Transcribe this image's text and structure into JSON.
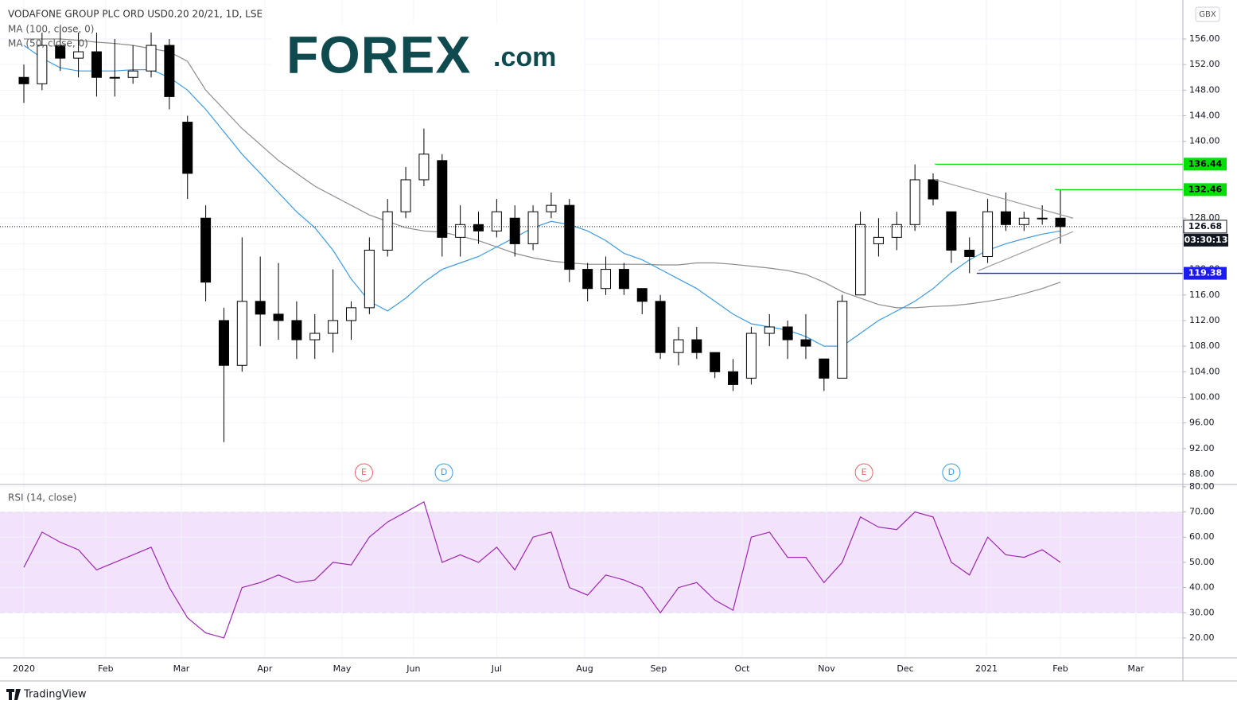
{
  "chart_data": [
    {
      "type": "candlestick",
      "title": "VODAFONE GROUP PLC ORD USD0.20 20/21, 1D, LSE",
      "unit": "GBX",
      "x": [
        0,
        1,
        2,
        3,
        4,
        5,
        6,
        7,
        8,
        9,
        10,
        11,
        12,
        13,
        14,
        15,
        16,
        17,
        18,
        19,
        20,
        21,
        22,
        23,
        24,
        25,
        26,
        27,
        28,
        29,
        30,
        31,
        32,
        33,
        34,
        35,
        36,
        37,
        38,
        39,
        40,
        41,
        42,
        43,
        44,
        45,
        46,
        47,
        48,
        49,
        50,
        51,
        52,
        53,
        54,
        55,
        56,
        57
      ],
      "open": [
        150,
        149,
        155,
        153,
        154,
        150,
        150,
        151,
        155,
        143,
        128,
        112,
        105,
        115,
        113,
        112,
        109,
        110,
        112,
        114,
        123,
        129,
        134,
        137,
        125,
        127,
        126,
        128,
        124,
        129,
        130,
        120,
        117,
        120,
        117,
        115,
        107,
        109,
        107,
        104,
        103,
        110,
        111,
        109,
        106,
        103,
        116,
        124,
        125,
        127,
        134,
        129,
        123,
        122,
        129,
        127,
        128,
        128
      ],
      "high": [
        152,
        157,
        158,
        157,
        157,
        156,
        155,
        157,
        156,
        144,
        130,
        114,
        125,
        122,
        121,
        115,
        113,
        120,
        115,
        125,
        131,
        136,
        142,
        138,
        130,
        129,
        131,
        130,
        130,
        132,
        131,
        121,
        122,
        121,
        117,
        116,
        111,
        111,
        107,
        106,
        111,
        113,
        112,
        113,
        106,
        116,
        129,
        128,
        129,
        136.4,
        135,
        129,
        125,
        131,
        132,
        129,
        130,
        132.5
      ],
      "low": [
        146,
        148,
        151,
        150,
        147,
        147,
        149,
        150,
        145,
        131,
        115,
        93,
        104,
        108,
        109,
        106,
        106,
        107,
        109,
        113,
        122,
        128,
        133,
        122,
        122,
        124,
        125,
        122,
        123,
        128,
        118,
        115,
        116,
        116,
        113,
        106,
        105,
        106,
        103,
        101,
        102,
        108,
        106,
        106,
        101,
        103,
        116,
        122,
        123,
        126,
        130,
        121,
        119.4,
        121,
        126,
        126,
        127,
        124
      ],
      "close": [
        149,
        155,
        153,
        154,
        150,
        150,
        151,
        155,
        147,
        135,
        118,
        105,
        115,
        113,
        112,
        109,
        110,
        112,
        114,
        123,
        129,
        134,
        138,
        125,
        127,
        126,
        129,
        124,
        129,
        130,
        120,
        117,
        120,
        117,
        115,
        107,
        109,
        107,
        104,
        102,
        110,
        111,
        109,
        108,
        103,
        115,
        127,
        125,
        127,
        134,
        131,
        123,
        122,
        129,
        127,
        128,
        128,
        126.68
      ],
      "up_color": "#ffffff",
      "down_color": "#000000",
      "edge_color": "#000000",
      "series": [
        {
          "name": "MA (100, close, 0)",
          "color": "#8c8c8c",
          "values": [
            156,
            156,
            156,
            155.8,
            155.5,
            155.3,
            155,
            154.5,
            154,
            152.5,
            148,
            145,
            142,
            139.5,
            137,
            135,
            133,
            131.5,
            130,
            128.5,
            127.5,
            126.5,
            126,
            125.8,
            125.2,
            124.5,
            123.5,
            122.5,
            121.8,
            121.3,
            121,
            120.8,
            120.8,
            120.8,
            120.8,
            120.7,
            120.7,
            121,
            121,
            120.8,
            120.5,
            120.2,
            119.8,
            119.2,
            118,
            116.5,
            115.5,
            114.5,
            114,
            114,
            114.2,
            114.3,
            114.6,
            115,
            115.5,
            116.2,
            117,
            118
          ]
        },
        {
          "name": "MA (50, close, 0)",
          "color": "#3d9be0",
          "values": [
            155,
            153,
            151.5,
            151,
            151,
            151,
            151.2,
            151.2,
            150,
            148,
            145,
            141.5,
            138,
            135,
            132,
            129,
            126.5,
            123,
            118.5,
            115,
            113.5,
            115.5,
            118,
            120,
            121,
            122,
            123.5,
            125,
            126.5,
            127.5,
            127,
            126,
            124.5,
            122.5,
            121.5,
            120,
            118.5,
            117,
            115,
            113,
            111.5,
            111,
            110.5,
            109.5,
            108,
            108,
            110,
            112,
            113.5,
            115,
            117,
            119.5,
            121.5,
            123,
            124,
            124.8,
            125.5,
            126
          ]
        }
      ],
      "xlim": [
        -1.3123,
        63.7358
      ],
      "ylim": [
        86.51,
        162.09
      ],
      "yticks": [
        {
          "value": 88,
          "label": "88.00"
        },
        {
          "value": 92,
          "label": "92.00"
        },
        {
          "value": 96,
          "label": "96.00"
        },
        {
          "value": 100,
          "label": "100.00"
        },
        {
          "value": 104,
          "label": "104.00"
        },
        {
          "value": 108,
          "label": "108.00"
        },
        {
          "value": 112,
          "label": "112.00"
        },
        {
          "value": 116,
          "label": "116.00"
        },
        {
          "value": 120,
          "label": "120.00"
        },
        {
          "value": 124,
          "label": "124.00"
        },
        {
          "value": 128,
          "label": "128.00"
        },
        {
          "value": 132,
          "label": "132.00"
        },
        {
          "value": 136,
          "label": "136.00"
        },
        {
          "value": 140,
          "label": "140.00"
        },
        {
          "value": 144,
          "label": "144.00"
        },
        {
          "value": 148,
          "label": "148.00"
        },
        {
          "value": 152,
          "label": "152.00"
        },
        {
          "value": 156,
          "label": "156.00"
        }
      ],
      "grid": true,
      "levels": [
        {
          "value": 136.44,
          "x": 50.1,
          "color": "#00e000",
          "text_color": "#000000"
        },
        {
          "value": 132.46,
          "x": 56.7,
          "color": "#00e000",
          "text_color": "#000000"
        },
        {
          "value": 119.38,
          "x": 52.4,
          "color": "#1c1cf0",
          "text_color": "#ffffff"
        }
      ],
      "last_price": 126.68,
      "countdown": "03:30:13",
      "trendlines": [
        {
          "x": [
            50.1,
            57.7
          ],
          "y": [
            134.0,
            128.0
          ],
          "color": "#9a9a9a"
        },
        {
          "x": [
            52.5,
            57.7
          ],
          "y": [
            119.8,
            125.9
          ],
          "color": "#9a9a9a"
        }
      ],
      "events": [
        {
          "x": 18.7,
          "label": "E",
          "color": "#e06666"
        },
        {
          "x": 23.1,
          "label": "D",
          "color": "#3d9be0"
        },
        {
          "x": 46.2,
          "label": "E",
          "color": "#e06666"
        },
        {
          "x": 51.0,
          "label": "D",
          "color": "#3d9be0"
        }
      ]
    },
    {
      "type": "line",
      "title": "RSI (14, close)",
      "x": [
        0,
        1,
        2,
        3,
        4,
        5,
        6,
        7,
        8,
        9,
        10,
        11,
        12,
        13,
        14,
        15,
        16,
        17,
        18,
        19,
        20,
        21,
        22,
        23,
        24,
        25,
        26,
        27,
        28,
        29,
        30,
        31,
        32,
        33,
        34,
        35,
        36,
        37,
        38,
        39,
        40,
        41,
        42,
        43,
        44,
        45,
        46,
        47,
        48,
        49,
        50,
        51,
        52,
        53,
        54,
        55,
        56,
        57
      ],
      "values": [
        48,
        62,
        58,
        55,
        47,
        50,
        53,
        56,
        40,
        28,
        22,
        20,
        40,
        42,
        45,
        42,
        43,
        50,
        49,
        60,
        66,
        70,
        74,
        50,
        53,
        50,
        56,
        47,
        60,
        62,
        40,
        37,
        45,
        43,
        40,
        30,
        40,
        42,
        35,
        31,
        60,
        62,
        52,
        52,
        42,
        50,
        68,
        64,
        63,
        70,
        68,
        50,
        45,
        60,
        53,
        52,
        55,
        50
      ],
      "color": "#9c27b0",
      "band": [
        30,
        70
      ],
      "band_color": "#f3e2fb",
      "xlim": [
        -1.3123,
        63.7358
      ],
      "ylim": [
        12.4,
        80.6
      ],
      "yticks": [
        {
          "value": 20,
          "label": "20.00"
        },
        {
          "value": 30,
          "label": "30.00"
        },
        {
          "value": 40,
          "label": "40.00"
        },
        {
          "value": 50,
          "label": "50.00"
        },
        {
          "value": 60,
          "label": "60.00"
        },
        {
          "value": 70,
          "label": "70.00"
        },
        {
          "value": 80,
          "label": "80.00"
        }
      ],
      "xticks": [
        {
          "value": 0,
          "label": "2020"
        },
        {
          "value": 4.5,
          "label": "Feb"
        },
        {
          "value": 8.66,
          "label": "Mar"
        },
        {
          "value": 13.25,
          "label": "Apr"
        },
        {
          "value": 17.5,
          "label": "May"
        },
        {
          "value": 21.43,
          "label": "Jun"
        },
        {
          "value": 26,
          "label": "Jul"
        },
        {
          "value": 30.84,
          "label": "Aug"
        },
        {
          "value": 34.9,
          "label": "Sep"
        },
        {
          "value": 39.5,
          "label": "Oct"
        },
        {
          "value": 44.14,
          "label": "Nov"
        },
        {
          "value": 48.47,
          "label": "Dec"
        },
        {
          "value": 52.93,
          "label": "2021"
        },
        {
          "value": 57,
          "label": "Feb"
        },
        {
          "value": 61.15,
          "label": "Mar"
        }
      ],
      "grid": true
    }
  ],
  "logo": {
    "brand": "FOREX",
    "suffix": ".com"
  },
  "footer": "TradingView"
}
